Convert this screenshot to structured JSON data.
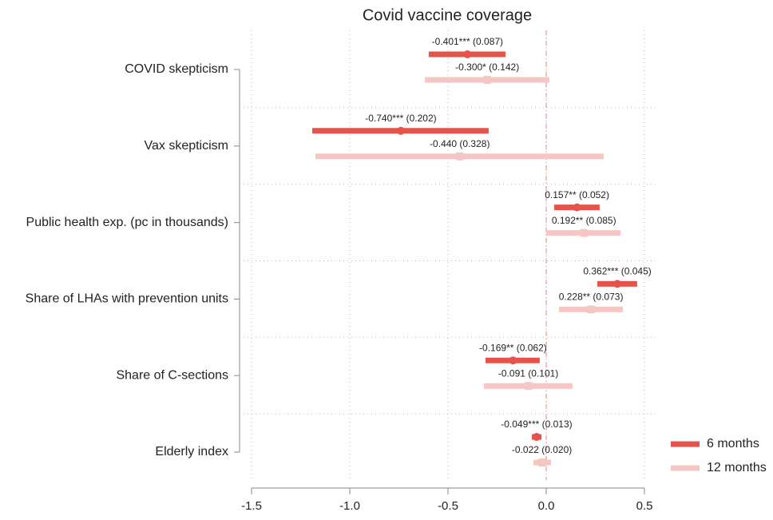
{
  "chart_data": {
    "type": "coefplot",
    "title": "Covid vaccine coverage",
    "categories": [
      "COVID skepticism",
      "Vax skepticism",
      "Public health exp. (pc in thousands)",
      "Share of LHAs with prevention units",
      "Share of C-sections",
      "Elderly index"
    ],
    "xlim": [
      -1.5,
      0.5
    ],
    "xticks": [
      -1.5,
      {
        "value": -1,
        "label": "-1.0"
      },
      -0.5,
      {
        "value": 0,
        "label": "0.0"
      },
      0.5
    ],
    "grid": true,
    "legend": "bottom-right",
    "series": [
      {
        "name": "6 months",
        "color": "#e5534b",
        "values": [
          -0.401,
          -0.74,
          0.157,
          0.362,
          -0.169,
          -0.049
        ],
        "value_labels": [
          "-0.401*** (0.087)",
          "-0.740*** (0.202)",
          "0.157** (0.052)",
          "0.362*** (0.045)",
          "-0.169** (0.062)",
          "-0.049*** (0.013)"
        ],
        "lower": [
          -0.598,
          -1.191,
          0.041,
          0.26,
          -0.309,
          -0.073
        ],
        "upper": [
          -0.207,
          -0.293,
          0.272,
          0.463,
          -0.033,
          -0.024
        ]
      },
      {
        "name": "12 months",
        "color": "#f4c7c4",
        "values": [
          -0.3,
          -0.44,
          0.192,
          0.228,
          -0.091,
          -0.022
        ],
        "value_labels": [
          "-0.300* (0.142)",
          "-0.440 (0.328)",
          "0.192** (0.085)",
          "0.228** (0.073)",
          "-0.091 (0.101)",
          "-0.022 (0.020)"
        ],
        "lower": [
          -0.618,
          -1.175,
          0.0,
          0.065,
          -0.317,
          -0.065
        ],
        "upper": [
          0.016,
          0.293,
          0.378,
          0.39,
          0.134,
          0.024
        ]
      }
    ]
  }
}
